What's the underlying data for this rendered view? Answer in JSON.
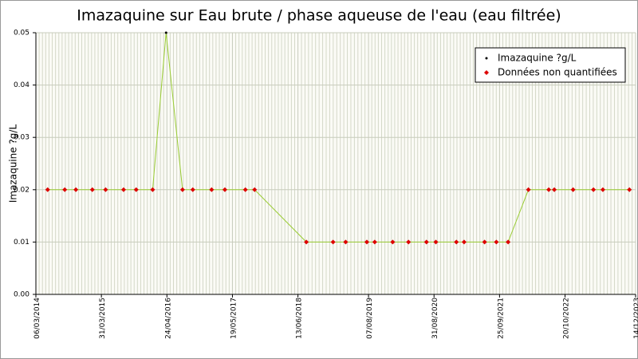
{
  "chart_data": {
    "type": "line",
    "title": "Imazaquine sur Eau brute / phase aqueuse de l'eau (eau filtrée)",
    "y_label": "Imazaquine ?g/L",
    "ylim": [
      0,
      0.05
    ],
    "yticks": [
      {
        "value": 0,
        "label": "0.00"
      },
      0.01,
      0.02,
      0.03,
      0.04,
      0.05
    ],
    "xlim": [
      "06/03/2014",
      "14/12/2023"
    ],
    "xticks": [
      "06/03/2014",
      "31/03/2015",
      "24/04/2016",
      "19/05/2017",
      "13/06/2018",
      "07/08/2019",
      "31/08/2020",
      "25/09/2021",
      "20/10/2022",
      "14/12/2023"
    ],
    "grid": true,
    "legend": "upper right",
    "series": [
      {
        "name": "Imazaquine ?g/L",
        "color": "#000000",
        "line_color": "#99cc33",
        "x": [
          "15/05/2014",
          "25/08/2014",
          "30/10/2014",
          "05/02/2015",
          "25/04/2015",
          "10/08/2015",
          "24/10/2015",
          "30/01/2016",
          "19/04/2016",
          "26/07/2016",
          "25/09/2016",
          "15/01/2017",
          "04/04/2017",
          "04/08/2017",
          "28/09/2017",
          "02/08/2018",
          "08/01/2019",
          "24/03/2019",
          "28/07/2019",
          "13/09/2019",
          "29/12/2019",
          "01/04/2020",
          "17/07/2020",
          "11/09/2020",
          "11/01/2021",
          "26/02/2021",
          "28/06/2021",
          "06/09/2021",
          "15/11/2021",
          "16/03/2022",
          "15/07/2022",
          "17/08/2022",
          "07/12/2022",
          "07/04/2023",
          "02/06/2023",
          "07/11/2023"
        ],
        "values": [
          0.02,
          0.02,
          0.02,
          0.02,
          0.02,
          0.02,
          0.02,
          0.02,
          0.05,
          0.02,
          0.02,
          0.02,
          0.02,
          0.02,
          0.02,
          0.01,
          0.01,
          0.01,
          0.01,
          0.01,
          0.01,
          0.01,
          0.01,
          0.01,
          0.01,
          0.01,
          0.01,
          0.01,
          0.01,
          0.02,
          0.02,
          0.02,
          0.02,
          0.02,
          0.02,
          0.02
        ]
      },
      {
        "name": "Données non quantifiées",
        "color": "#dd0000",
        "x": [
          "15/05/2014",
          "25/08/2014",
          "30/10/2014",
          "05/02/2015",
          "25/04/2015",
          "10/08/2015",
          "24/10/2015",
          "30/01/2016",
          "26/07/2016",
          "25/09/2016",
          "15/01/2017",
          "04/04/2017",
          "04/08/2017",
          "28/09/2017",
          "02/08/2018",
          "08/01/2019",
          "24/03/2019",
          "28/07/2019",
          "13/09/2019",
          "29/12/2019",
          "01/04/2020",
          "17/07/2020",
          "11/09/2020",
          "11/01/2021",
          "26/02/2021",
          "28/06/2021",
          "06/09/2021",
          "15/11/2021",
          "16/03/2022",
          "15/07/2022",
          "17/08/2022",
          "07/12/2022",
          "07/04/2023",
          "02/06/2023",
          "07/11/2023"
        ],
        "values": [
          0.02,
          0.02,
          0.02,
          0.02,
          0.02,
          0.02,
          0.02,
          0.02,
          0.02,
          0.02,
          0.02,
          0.02,
          0.02,
          0.02,
          0.01,
          0.01,
          0.01,
          0.01,
          0.01,
          0.01,
          0.01,
          0.01,
          0.01,
          0.01,
          0.01,
          0.01,
          0.01,
          0.01,
          0.02,
          0.02,
          0.02,
          0.02,
          0.02,
          0.02,
          0.02
        ]
      }
    ]
  }
}
